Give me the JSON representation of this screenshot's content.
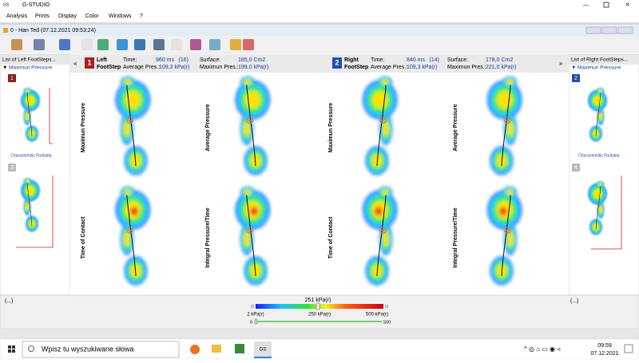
{
  "window": {
    "title": "G-STUDIO"
  },
  "menu": [
    "Analysis",
    "Prints",
    "Display",
    "Color",
    "Windows",
    "?"
  ],
  "document": {
    "title": "0 -  Han Ted  (07.12.2021 09:53:24)"
  },
  "left_panel": {
    "header": "List of Left FootSteps...",
    "mode": "Maximun Pressure",
    "items": [
      {
        "number": "1",
        "label": "Characteristic Footstep"
      },
      {
        "number": "3"
      }
    ]
  },
  "right_panel": {
    "header": "List of Right FootSteps...",
    "mode": "Maximun Pressure",
    "items": [
      {
        "number": "2",
        "label": "Characteristic Footstep"
      },
      {
        "number": "4"
      }
    ]
  },
  "left_step": {
    "number": "1",
    "side": "Left",
    "kind": "FootStep",
    "time_label": "Time:",
    "time": "960 ms",
    "count": "(16)",
    "avg_label": "Average Pres.:",
    "avg": "109,3 kPa(r)",
    "surface_label": "Surface:",
    "surface": "185,0 Cm2",
    "max_label": "Maximun Pres.:",
    "max": "199,0 kPa(r)"
  },
  "right_step": {
    "number": "2",
    "side": "Right",
    "kind": "FootStep",
    "time_label": "Time:",
    "time": "840 ms",
    "count": "(14)",
    "avg_label": "Average Pres.:",
    "avg": "109,3 kPa(r)",
    "surface_label": "Surface:",
    "surface": "178,0 Cm2",
    "max_label": "Maximun Pres.:",
    "max": "221,0 kPa(r)"
  },
  "views": [
    "Maximun Pressure",
    "Average Pressure",
    "Maximun Pressure",
    "Average Pressure",
    "Time of Contact",
    "Integral Pressure/Time",
    "Time of Contact",
    "Integral Pressure/Time"
  ],
  "status": {
    "left": "(...)",
    "right": "(...)"
  },
  "color_scale": {
    "current": "251 kPa(r)",
    "min": "2 kPa(r)",
    "mid": "250 kPa(r)",
    "max": "500 kPa(r)",
    "slider_min": "0",
    "slider_max": "500"
  },
  "taskbar": {
    "search": "Wpisz tu wyszukiwane słowa",
    "app": "GS",
    "time": "09:59",
    "date": "07.12.2021"
  }
}
